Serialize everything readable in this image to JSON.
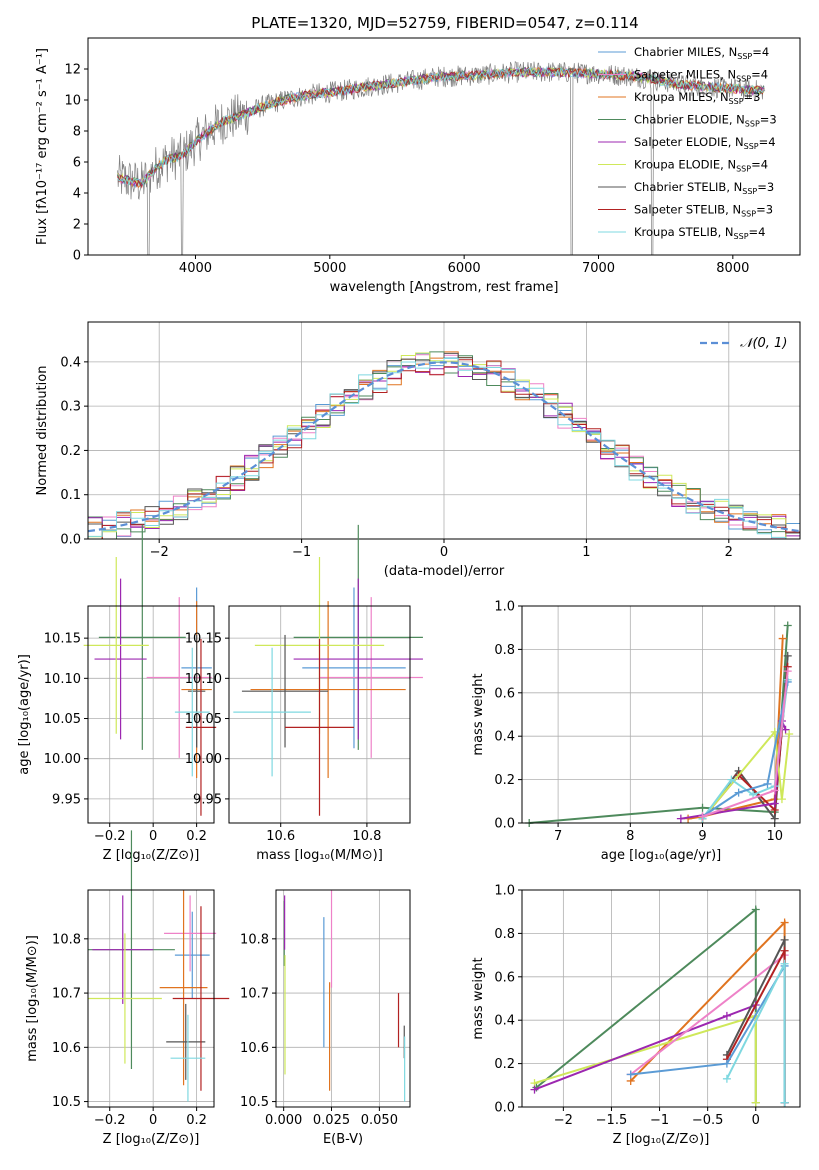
{
  "figure_title": "PLATE=1320, MJD=52759, FIBERID=0547, z=0.114",
  "colors": {
    "Chabrier MILES": "#5b9bd5",
    "Salpeter MILES": "#ee82c8",
    "Kroupa MILES": "#e07420",
    "Chabrier ELODIE": "#4e8a5c",
    "Salpeter ELODIE": "#9c27b0",
    "Kroupa ELODIE": "#cfe85a",
    "Chabrier STELIB": "#555555",
    "Salpeter STELIB": "#b22222",
    "Kroupa STELIB": "#7fd8e0"
  },
  "chart_data": [
    {
      "id": "spectrum",
      "type": "line",
      "title": "PLATE=1320, MJD=52759, FIBERID=0547, z=0.114",
      "xlabel": "wavelength [Angstrom, rest frame]",
      "ylabel": "Flux [fλ10⁻¹⁷ erg cm⁻² s⁻¹ A⁻¹]",
      "xlim": [
        3200,
        8500
      ],
      "ylim": [
        0,
        14
      ],
      "xticks": [
        4000,
        5000,
        6000,
        7000,
        8000
      ],
      "yticks": [
        0,
        2,
        4,
        6,
        8,
        10,
        12
      ],
      "grid": false,
      "legend_position": "top-right",
      "continuum": [
        [
          3420,
          5.0
        ],
        [
          3500,
          4.8
        ],
        [
          3600,
          4.6
        ],
        [
          3700,
          5.6
        ],
        [
          3800,
          6.2
        ],
        [
          3900,
          6.4
        ],
        [
          4000,
          7.3
        ],
        [
          4100,
          8.0
        ],
        [
          4200,
          8.6
        ],
        [
          4300,
          8.9
        ],
        [
          4400,
          9.2
        ],
        [
          4500,
          9.6
        ],
        [
          4700,
          10.1
        ],
        [
          4900,
          10.4
        ],
        [
          5100,
          10.6
        ],
        [
          5300,
          10.9
        ],
        [
          5500,
          11.1
        ],
        [
          5800,
          11.5
        ],
        [
          6100,
          11.6
        ],
        [
          6400,
          11.8
        ],
        [
          6700,
          11.8
        ],
        [
          7000,
          11.7
        ],
        [
          7300,
          11.5
        ],
        [
          7600,
          11.0
        ],
        [
          7900,
          10.8
        ],
        [
          8200,
          10.6
        ],
        [
          8240,
          10.7
        ]
      ],
      "series": [
        {
          "name": "Chabrier MILES, N_SSP=4",
          "legend": "Chabrier MILES, N",
          "ssp": "=4"
        },
        {
          "name": "Salpeter MILES, N_SSP=4",
          "legend": "Salpeter MILES, N",
          "ssp": "=4"
        },
        {
          "name": "Kroupa MILES, N_SSP=3",
          "legend": "Kroupa MILES, N",
          "ssp": "=3"
        },
        {
          "name": "Chabrier ELODIE, N_SSP=3",
          "legend": "Chabrier ELODIE, N",
          "ssp": "=3"
        },
        {
          "name": "Salpeter ELODIE, N_SSP=4",
          "legend": "Salpeter ELODIE, N",
          "ssp": "=4"
        },
        {
          "name": "Kroupa ELODIE, N_SSP=4",
          "legend": "Kroupa ELODIE, N",
          "ssp": "=4"
        },
        {
          "name": "Chabrier STELIB, N_SSP=3",
          "legend": "Chabrier STELIB, N",
          "ssp": "=3"
        },
        {
          "name": "Salpeter STELIB, N_SSP=3",
          "legend": "Salpeter STELIB, N",
          "ssp": "=3"
        },
        {
          "name": "Kroupa STELIB, N_SSP=4",
          "legend": "Kroupa STELIB, N",
          "ssp": "=4"
        }
      ],
      "legend_sub": "SSP"
    },
    {
      "id": "residuals",
      "type": "histogram",
      "xlabel": "(data-model)/error",
      "ylabel": "Normed distribution",
      "xlim": [
        -2.5,
        2.5
      ],
      "ylim": [
        0,
        0.49
      ],
      "xticks": [
        -2,
        -1,
        0,
        1,
        2
      ],
      "yticks": [
        0.0,
        0.1,
        0.2,
        0.3,
        0.4
      ],
      "grid": true,
      "legend_position": "top-right",
      "reference_curve": "𝒩(0, 1)",
      "bin_width": 0.1
    },
    {
      "id": "age-vs-Z",
      "type": "errorbar",
      "xlabel": "Z [log₁₀(Z/Z⊙)]",
      "ylabel": "age  [log₁₀(age/yr)]",
      "xlim": [
        -0.3,
        0.28
      ],
      "ylim": [
        9.92,
        10.19
      ],
      "xticks": [
        -0.2,
        0.0,
        0.2
      ],
      "yticks": [
        9.95,
        10.0,
        10.05,
        10.1,
        10.15
      ],
      "grid": true,
      "points": [
        {
          "s": "Chabrier MILES",
          "x": 0.2,
          "y": 10.113,
          "xerr": 0.07,
          "yerr": 0.1
        },
        {
          "s": "Salpeter MILES",
          "x": 0.12,
          "y": 10.101,
          "xerr": 0.15,
          "yerr": 0.1
        },
        {
          "s": "Kroupa MILES",
          "x": 0.2,
          "y": 10.086,
          "xerr": 0.07,
          "yerr": 0.11
        },
        {
          "s": "Chabrier ELODIE",
          "x": -0.05,
          "y": 10.151,
          "xerr": 0.2,
          "yerr": 0.14
        },
        {
          "s": "Salpeter ELODIE",
          "x": -0.15,
          "y": 10.124,
          "xerr": 0.12,
          "yerr": 0.1
        },
        {
          "s": "Kroupa ELODIE",
          "x": -0.17,
          "y": 10.141,
          "xerr": 0.15,
          "yerr": 0.11
        },
        {
          "s": "Chabrier STELIB",
          "x": 0.2,
          "y": 10.084,
          "xerr": 0.04,
          "yerr": 0.07
        },
        {
          "s": "Salpeter STELIB",
          "x": 0.22,
          "y": 10.039,
          "xerr": 0.07,
          "yerr": 0.11
        },
        {
          "s": "Kroupa STELIB",
          "x": 0.18,
          "y": 10.058,
          "xerr": 0.08,
          "yerr": 0.08
        }
      ]
    },
    {
      "id": "age-vs-mass",
      "type": "errorbar",
      "xlabel": "mass [log₁₀(M/M⊙)]",
      "ylabel": "",
      "xlim": [
        10.48,
        10.9
      ],
      "ylim": [
        9.92,
        10.19
      ],
      "xticks": [
        10.6,
        10.8
      ],
      "yticks": [
        9.95,
        10.0,
        10.05,
        10.1,
        10.15
      ],
      "grid": true,
      "points": [
        {
          "s": "Chabrier MILES",
          "x": 10.77,
          "y": 10.113,
          "xerr": 0.12,
          "yerr": 0.1
        },
        {
          "s": "Salpeter MILES",
          "x": 10.81,
          "y": 10.101,
          "xerr": 0.12,
          "yerr": 0.1
        },
        {
          "s": "Kroupa MILES",
          "x": 10.71,
          "y": 10.086,
          "xerr": 0.18,
          "yerr": 0.11
        },
        {
          "s": "Chabrier ELODIE",
          "x": 10.78,
          "y": 10.151,
          "xerr": 0.15,
          "yerr": 0.14
        },
        {
          "s": "Salpeter ELODIE",
          "x": 10.78,
          "y": 10.124,
          "xerr": 0.15,
          "yerr": 0.1
        },
        {
          "s": "Kroupa ELODIE",
          "x": 10.69,
          "y": 10.141,
          "xerr": 0.15,
          "yerr": 0.11
        },
        {
          "s": "Chabrier STELIB",
          "x": 10.61,
          "y": 10.084,
          "xerr": 0.1,
          "yerr": 0.07
        },
        {
          "s": "Salpeter STELIB",
          "x": 10.69,
          "y": 10.039,
          "xerr": 0.08,
          "yerr": 0.11
        },
        {
          "s": "Kroupa STELIB",
          "x": 10.58,
          "y": 10.058,
          "xerr": 0.09,
          "yerr": 0.08
        }
      ]
    },
    {
      "id": "mass-weight-vs-age",
      "type": "line",
      "xlabel": "age  [log₁₀(age/yr)]",
      "ylabel": "mass weight",
      "xlim": [
        6.5,
        10.35
      ],
      "ylim": [
        0,
        1.0
      ],
      "xticks": [
        7,
        8,
        9,
        10
      ],
      "yticks": [
        0.0,
        0.2,
        0.4,
        0.6,
        0.8,
        1.0
      ],
      "grid": true,
      "series": [
        {
          "s": "Chabrier ELODIE",
          "x": [
            6.6,
            9.0,
            10.0,
            10.18
          ],
          "y": [
            0.0,
            0.07,
            0.05,
            0.91
          ]
        },
        {
          "s": "Kroupa MILES",
          "x": [
            8.8,
            9.0,
            10.0,
            10.11
          ],
          "y": [
            0.02,
            0.03,
            0.11,
            0.85
          ]
        },
        {
          "s": "Chabrier STELIB",
          "x": [
            9.0,
            9.5,
            10.0,
            10.18
          ],
          "y": [
            0.02,
            0.24,
            0.02,
            0.77
          ]
        },
        {
          "s": "Salpeter STELIB",
          "x": [
            9.0,
            9.5,
            10.0,
            10.18
          ],
          "y": [
            0.02,
            0.22,
            0.06,
            0.72
          ]
        },
        {
          "s": "Salpeter ELODIE",
          "x": [
            8.7,
            10.0,
            10.1,
            10.15
          ],
          "y": [
            0.02,
            0.09,
            0.47,
            0.43
          ]
        },
        {
          "s": "Kroupa ELODIE",
          "x": [
            9.0,
            10.0,
            10.1,
            10.2
          ],
          "y": [
            0.02,
            0.42,
            0.11,
            0.41
          ]
        },
        {
          "s": "Kroupa STELIB",
          "x": [
            9.0,
            9.4,
            9.7,
            10.0,
            10.18
          ],
          "y": [
            0.02,
            0.2,
            0.13,
            0.17,
            0.66
          ]
        },
        {
          "s": "Chabrier MILES",
          "x": [
            9.0,
            9.5,
            9.9,
            10.18
          ],
          "y": [
            0.03,
            0.14,
            0.18,
            0.65
          ]
        },
        {
          "s": "Salpeter MILES",
          "x": [
            9.0,
            10.0,
            10.18
          ],
          "y": [
            0.03,
            0.15,
            0.7
          ]
        }
      ]
    },
    {
      "id": "mass-vs-Z",
      "type": "errorbar",
      "xlabel": "Z [log₁₀(Z/Z⊙)]",
      "ylabel": "mass [log₁₀(M/M⊙)]",
      "xlim": [
        -0.3,
        0.28
      ],
      "ylim": [
        10.49,
        10.89
      ],
      "xticks": [
        -0.2,
        0.0,
        0.2
      ],
      "yticks": [
        10.5,
        10.6,
        10.7,
        10.8
      ],
      "grid": true,
      "points": [
        {
          "s": "Chabrier MILES",
          "x": 0.18,
          "y": 10.77,
          "xerr": 0.08,
          "yerr": 0.08
        },
        {
          "s": "Salpeter MILES",
          "x": 0.17,
          "y": 10.81,
          "xerr": 0.12,
          "yerr": 0.07
        },
        {
          "s": "Kroupa MILES",
          "x": 0.14,
          "y": 10.71,
          "xerr": 0.11,
          "yerr": 0.18
        },
        {
          "s": "Chabrier ELODIE",
          "x": -0.1,
          "y": 10.78,
          "xerr": 0.2,
          "yerr": 0.22
        },
        {
          "s": "Salpeter ELODIE",
          "x": -0.14,
          "y": 10.78,
          "xerr": 0.14,
          "yerr": 0.1
        },
        {
          "s": "Kroupa ELODIE",
          "x": -0.13,
          "y": 10.69,
          "xerr": 0.17,
          "yerr": 0.12
        },
        {
          "s": "Chabrier STELIB",
          "x": 0.15,
          "y": 10.61,
          "xerr": 0.09,
          "yerr": 0.07
        },
        {
          "s": "Salpeter STELIB",
          "x": 0.22,
          "y": 10.69,
          "xerr": 0.13,
          "yerr": 0.17
        },
        {
          "s": "Kroupa STELIB",
          "x": 0.16,
          "y": 10.58,
          "xerr": 0.08,
          "yerr": 0.08
        }
      ]
    },
    {
      "id": "mass-vs-ebv",
      "type": "errorbar",
      "xlabel": "E(B-V)",
      "ylabel": "",
      "xlim": [
        -0.004,
        0.066
      ],
      "ylim": [
        10.49,
        10.89
      ],
      "xticks": [
        0.0,
        0.025,
        0.05
      ],
      "xticklabels": [
        "0.000",
        "0.025",
        "0.050"
      ],
      "yticks": [
        10.5,
        10.6,
        10.7,
        10.8
      ],
      "grid": true,
      "points": [
        {
          "s": "Chabrier MILES",
          "x": 0.021,
          "y": 10.72,
          "xerr": 0.0,
          "yerr": 0.12
        },
        {
          "s": "Salpeter MILES",
          "x": 0.025,
          "y": 10.8,
          "xerr": 0.0,
          "yerr": 0.09
        },
        {
          "s": "Kroupa MILES",
          "x": 0.024,
          "y": 10.62,
          "xerr": 0.0,
          "yerr": 0.1
        },
        {
          "s": "Chabrier ELODIE",
          "x": 0.0003,
          "y": 10.81,
          "xerr": 0.0,
          "yerr": 0.06
        },
        {
          "s": "Salpeter ELODIE",
          "x": 0.0005,
          "y": 10.83,
          "xerr": 0.0,
          "yerr": 0.05
        },
        {
          "s": "Kroupa ELODIE",
          "x": 0.0007,
          "y": 10.66,
          "xerr": 0.0,
          "yerr": 0.11
        },
        {
          "s": "Chabrier STELIB",
          "x": 0.063,
          "y": 10.61,
          "xerr": 0.0,
          "yerr": 0.03
        },
        {
          "s": "Salpeter STELIB",
          "x": 0.06,
          "y": 10.65,
          "xerr": 0.0,
          "yerr": 0.05
        },
        {
          "s": "Kroupa STELIB",
          "x": 0.0632,
          "y": 10.56,
          "xerr": 0.0,
          "yerr": 0.06
        }
      ]
    },
    {
      "id": "mass-weight-vs-Z",
      "type": "line",
      "xlabel": "Z [log₁₀(Z/Z⊙)]",
      "ylabel": "mass weight",
      "xlim": [
        -2.43,
        0.46
      ],
      "ylim": [
        0,
        1.0
      ],
      "xticks": [
        -2.0,
        -1.5,
        -1.0,
        -0.5,
        0.0
      ],
      "yticks": [
        0.0,
        0.2,
        0.4,
        0.6,
        0.8,
        1.0
      ],
      "grid": true,
      "series": [
        {
          "s": "Chabrier ELODIE",
          "x": [
            -2.28,
            0.0,
            0.0
          ],
          "y": [
            0.09,
            0.91,
            0.02
          ]
        },
        {
          "s": "Kroupa MILES",
          "x": [
            -1.3,
            0.3,
            0.3
          ],
          "y": [
            0.12,
            0.85,
            0.02
          ]
        },
        {
          "s": "Kroupa ELODIE",
          "x": [
            -2.3,
            0.0,
            0.0
          ],
          "y": [
            0.11,
            0.42,
            0.02
          ]
        },
        {
          "s": "Salpeter ELODIE",
          "x": [
            -2.3,
            -0.3,
            0.0
          ],
          "y": [
            0.08,
            0.42,
            0.47
          ]
        },
        {
          "s": "Salpeter MILES",
          "x": [
            -1.3,
            0.3,
            0.3
          ],
          "y": [
            0.15,
            0.7,
            0.02
          ]
        },
        {
          "s": "Chabrier STELIB",
          "x": [
            -0.3,
            0.3,
            0.3
          ],
          "y": [
            0.24,
            0.77,
            0.02
          ]
        },
        {
          "s": "Salpeter STELIB",
          "x": [
            -0.3,
            0.3,
            0.3
          ],
          "y": [
            0.22,
            0.72,
            0.02
          ]
        },
        {
          "s": "Chabrier MILES",
          "x": [
            -1.3,
            -0.3,
            0.3,
            0.3
          ],
          "y": [
            0.15,
            0.2,
            0.65,
            0.02
          ]
        },
        {
          "s": "Kroupa STELIB",
          "x": [
            -0.3,
            0.3,
            0.3
          ],
          "y": [
            0.13,
            0.66,
            0.02
          ]
        }
      ]
    }
  ]
}
